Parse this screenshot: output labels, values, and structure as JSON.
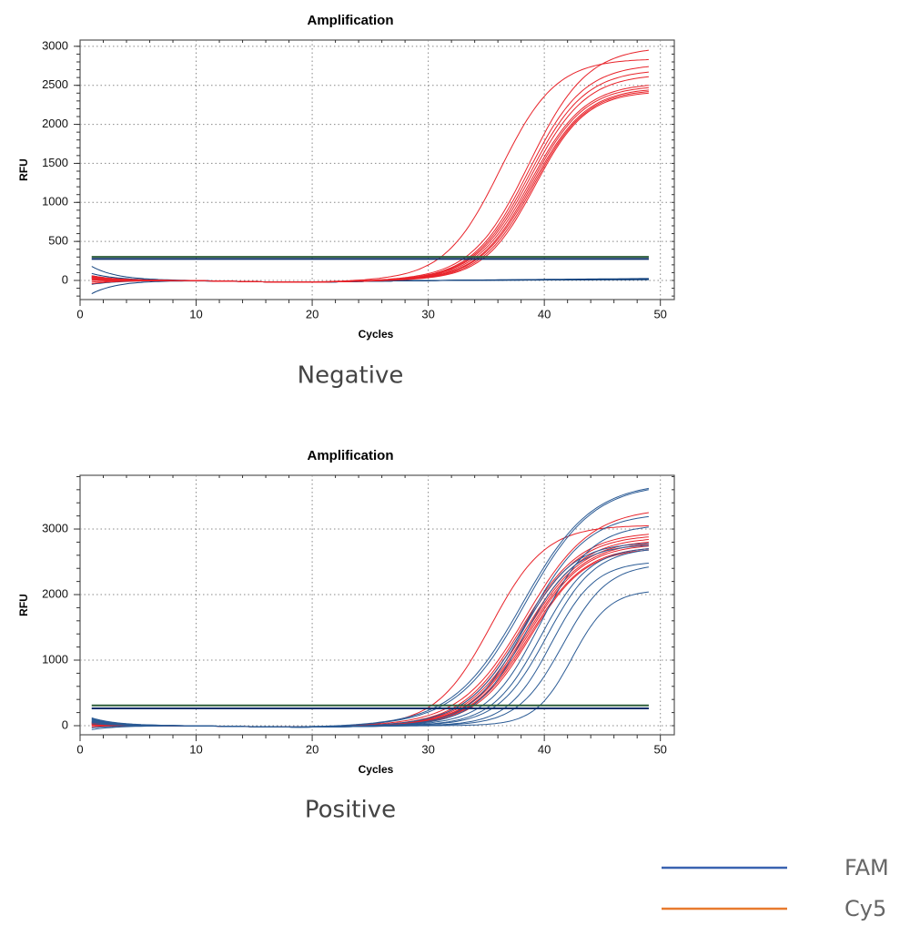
{
  "legend": {
    "items": [
      {
        "label": "FAM",
        "color": "#3a63b0"
      },
      {
        "label": "Cy5",
        "color": "#e87a2e"
      }
    ]
  },
  "chart_data": [
    {
      "type": "line",
      "title": "Amplification",
      "caption": "Negative",
      "xlabel": "Cycles",
      "ylabel": "RFU",
      "xlim": [
        0,
        51.2
      ],
      "ylim": [
        -245,
        3080
      ],
      "x_ticks": [
        0,
        10,
        20,
        30,
        40,
        50
      ],
      "y_ticks": [
        0,
        500,
        1000,
        1500,
        2000,
        2500,
        3000
      ],
      "y_minor_step": 100,
      "grid": true,
      "thresholds": {
        "FAM": 275,
        "Cy5": 302
      },
      "threshold_colors": {
        "FAM": "#0d2f6b",
        "Cy5": "#2f5f3a"
      },
      "series_colors": {
        "FAM": "#12427e",
        "Cy5": "#e8232a"
      },
      "series": [
        {
          "channel": "FAM",
          "curves": [
            {
              "rfu1": 180,
              "rfu49": 20
            },
            {
              "rfu1": 90,
              "rfu49": 15
            },
            {
              "rfu1": 60,
              "rfu49": 25
            },
            {
              "rfu1": 30,
              "rfu49": 10
            },
            {
              "rfu1": -50,
              "rfu49": 18
            },
            {
              "rfu1": -170,
              "rfu49": 12
            }
          ]
        },
        {
          "channel": "Cy5",
          "curves": [
            {
              "rfu1": 60,
              "ct": 31.1,
              "rfu40": 2350,
              "rfu49": 2830
            },
            {
              "rfu1": 40,
              "ct": 33.2,
              "rfu40": 1900,
              "rfu49": 2950
            },
            {
              "rfu1": 20,
              "ct": 33.5,
              "rfu40": 1780,
              "rfu49": 2740
            },
            {
              "rfu1": 50,
              "ct": 33.7,
              "rfu40": 1700,
              "rfu49": 2670
            },
            {
              "rfu1": -20,
              "ct": 33.9,
              "rfu40": 1640,
              "rfu49": 2610
            },
            {
              "rfu1": 30,
              "ct": 34.1,
              "rfu40": 1580,
              "rfu49": 2500
            },
            {
              "rfu1": 10,
              "ct": 34.3,
              "rfu40": 1540,
              "rfu49": 2470
            },
            {
              "rfu1": -40,
              "ct": 34.5,
              "rfu40": 1500,
              "rfu49": 2440
            },
            {
              "rfu1": 45,
              "ct": 34.7,
              "rfu40": 1460,
              "rfu49": 2420
            },
            {
              "rfu1": 0,
              "ct": 34.9,
              "rfu40": 1420,
              "rfu49": 2400
            }
          ]
        }
      ]
    },
    {
      "type": "line",
      "title": "Amplification",
      "caption": "Positive",
      "xlabel": "Cycles",
      "ylabel": "RFU",
      "xlim": [
        0,
        51.2
      ],
      "ylim": [
        -139,
        3820
      ],
      "x_ticks": [
        0,
        10,
        20,
        30,
        40,
        50
      ],
      "y_ticks": [
        0,
        1000,
        2000,
        3000
      ],
      "y_minor_step": 200,
      "grid": true,
      "thresholds": {
        "FAM": 263,
        "Cy5": 309
      },
      "threshold_colors": {
        "FAM": "#0d2f6b",
        "Cy5": "#2f5f3a"
      },
      "series_colors": {
        "FAM": "#2b5b95",
        "Cy5": "#e8232a"
      },
      "series": [
        {
          "channel": "Cy5",
          "curves": [
            {
              "rfu1": 40,
              "ct": 30.3,
              "rfu40": 2680,
              "rfu49": 3050
            },
            {
              "rfu1": 20,
              "ct": 32.0,
              "rfu40": 2150,
              "rfu49": 3250
            },
            {
              "rfu1": 60,
              "ct": 32.5,
              "rfu40": 2050,
              "rfu49": 2920
            },
            {
              "rfu1": -20,
              "ct": 32.8,
              "rfu40": 1980,
              "rfu49": 2880
            },
            {
              "rfu1": 30,
              "ct": 33.0,
              "rfu40": 1920,
              "rfu49": 2840
            },
            {
              "rfu1": 10,
              "ct": 33.2,
              "rfu40": 1870,
              "rfu49": 2800
            },
            {
              "rfu1": 50,
              "ct": 33.4,
              "rfu40": 1820,
              "rfu49": 2770
            },
            {
              "rfu1": 0,
              "ct": 33.6,
              "rfu40": 1780,
              "rfu49": 2740
            },
            {
              "rfu1": 35,
              "ct": 33.8,
              "rfu40": 1720,
              "rfu49": 2700
            },
            {
              "rfu1": 15,
              "ct": 34.0,
              "rfu40": 1680,
              "rfu49": 2680
            }
          ]
        },
        {
          "channel": "FAM",
          "curves": [
            {
              "rfu1": 120,
              "ct": 30.4,
              "rfu40": 2430,
              "rfu49": 3620
            },
            {
              "rfu1": 90,
              "ct": 30.7,
              "rfu40": 2400,
              "rfu49": 3600
            },
            {
              "rfu1": 70,
              "ct": 32.3,
              "rfu40": 2050,
              "rfu49": 3190
            },
            {
              "rfu1": 100,
              "ct": 33.0,
              "rfu40": 2000,
              "rfu49": 2780
            },
            {
              "rfu1": 50,
              "ct": 33.5,
              "rfu40": 1900,
              "rfu49": 2750
            },
            {
              "rfu1": 80,
              "ct": 34.3,
              "rfu40": 1650,
              "rfu49": 3030
            },
            {
              "rfu1": 30,
              "ct": 35.0,
              "rfu40": 1450,
              "rfu49": 2700
            },
            {
              "rfu1": 110,
              "ct": 35.5,
              "rfu40": 1300,
              "rfu49": 2680
            },
            {
              "rfu1": -30,
              "ct": 36.5,
              "rfu40": 1050,
              "rfu49": 2480
            },
            {
              "rfu1": 60,
              "ct": 37.5,
              "rfu40": 750,
              "rfu49": 2420
            },
            {
              "rfu1": -60,
              "ct": 39.3,
              "rfu40": 380,
              "rfu49": 2040
            }
          ]
        }
      ]
    }
  ]
}
